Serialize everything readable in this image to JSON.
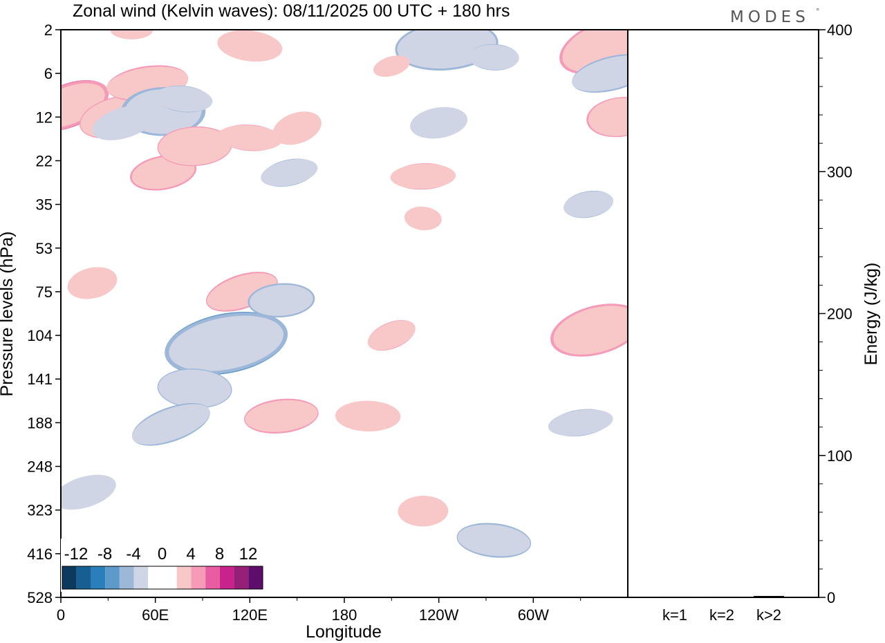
{
  "logo": {
    "text": "MODES",
    "mark": "°"
  },
  "chart_data": [
    {
      "type": "heatmap",
      "title": "Zonal wind (Kelvin waves):  08/11/2025  00 UTC  + 180 hrs",
      "xlabel": "Longitude",
      "ylabel": "Pressure levels (hPa)",
      "x_ticks": [
        {
          "label": "0",
          "lon": 0
        },
        {
          "label": "60E",
          "lon": 60
        },
        {
          "label": "120E",
          "lon": 120
        },
        {
          "label": "180",
          "lon": 180
        },
        {
          "label": "120W",
          "lon": 240
        },
        {
          "label": "60W",
          "lon": 300
        }
      ],
      "xlim": [
        0,
        360
      ],
      "y_ticks": [
        "2",
        "6",
        "12",
        "22",
        "35",
        "53",
        "75",
        "104",
        "141",
        "188",
        "248",
        "323",
        "416",
        "528"
      ],
      "y_scale": "categorical-pressure (top 2 hPa, bottom 528 hPa)",
      "colorbar": {
        "labels": [
          "-12",
          "-8",
          "-4",
          "0",
          "4",
          "8",
          "12"
        ],
        "colors": [
          "#0c3a5e",
          "#155f92",
          "#2a7fba",
          "#5d9ac9",
          "#9db7d9",
          "#d0d5e6",
          "#ffffff",
          "#ffffff",
          "#f8c7c7",
          "#f59ab7",
          "#e85ca1",
          "#c9228c",
          "#962078",
          "#5e0e6a"
        ],
        "legend_position": "bottom-left (inside plot)"
      },
      "anomalies": [
        {
          "lon": 5,
          "level": "10",
          "value": 9
        },
        {
          "lon": 35,
          "level": "12",
          "value": 6
        },
        {
          "lon": 55,
          "level": "7",
          "value": 6
        },
        {
          "lon": 65,
          "level": "11",
          "value": -8
        },
        {
          "lon": 78,
          "level": "9",
          "value": -4
        },
        {
          "lon": 40,
          "level": "13",
          "value": -5
        },
        {
          "lon": 65,
          "level": "25",
          "value": 6
        },
        {
          "lon": 85,
          "level": "18",
          "value": 7
        },
        {
          "lon": 120,
          "level": "16",
          "value": 5
        },
        {
          "lon": 150,
          "level": "14",
          "value": 5
        },
        {
          "lon": 145,
          "level": "25",
          "value": -5
        },
        {
          "lon": 245,
          "level": "3",
          "value": -9
        },
        {
          "lon": 275,
          "level": "4",
          "value": -4
        },
        {
          "lon": 345,
          "level": "3",
          "value": 9
        },
        {
          "lon": 350,
          "level": "6",
          "value": -6
        },
        {
          "lon": 355,
          "level": "12",
          "value": 7
        },
        {
          "lon": 45,
          "level": "2",
          "value": 3
        },
        {
          "lon": 120,
          "level": "3",
          "value": 4
        },
        {
          "lon": 210,
          "level": "5",
          "value": 3
        },
        {
          "lon": 240,
          "level": "13",
          "value": -4
        },
        {
          "lon": 230,
          "level": "26",
          "value": 4
        },
        {
          "lon": 230,
          "level": "40",
          "value": 3
        },
        {
          "lon": 115,
          "level": "75",
          "value": 6
        },
        {
          "lon": 105,
          "level": "110",
          "value": -11
        },
        {
          "lon": 140,
          "level": "80",
          "value": -6
        },
        {
          "lon": 85,
          "level": "150",
          "value": -7
        },
        {
          "lon": 70,
          "level": "190",
          "value": -6
        },
        {
          "lon": 20,
          "level": "70",
          "value": 4
        },
        {
          "lon": 140,
          "level": "180",
          "value": 6
        },
        {
          "lon": 195,
          "level": "180",
          "value": 4
        },
        {
          "lon": 210,
          "level": "104",
          "value": 4
        },
        {
          "lon": 340,
          "level": "100",
          "value": 8
        },
        {
          "lon": 330,
          "level": "188",
          "value": -4
        },
        {
          "lon": 230,
          "level": "325",
          "value": 5
        },
        {
          "lon": 275,
          "level": "385",
          "value": -6
        },
        {
          "lon": 15,
          "level": "290",
          "value": -4
        },
        {
          "lon": 335,
          "level": "35",
          "value": -4
        }
      ]
    },
    {
      "type": "bar",
      "ylabel": "Energy (J/kg)",
      "categories": [
        "k=1",
        "k=2",
        "k>2"
      ],
      "values": [
        0.5,
        0.5,
        1.0
      ],
      "ylim": [
        0,
        400
      ],
      "y_ticks": [
        "0",
        "100",
        "200",
        "300",
        "400"
      ]
    }
  ]
}
